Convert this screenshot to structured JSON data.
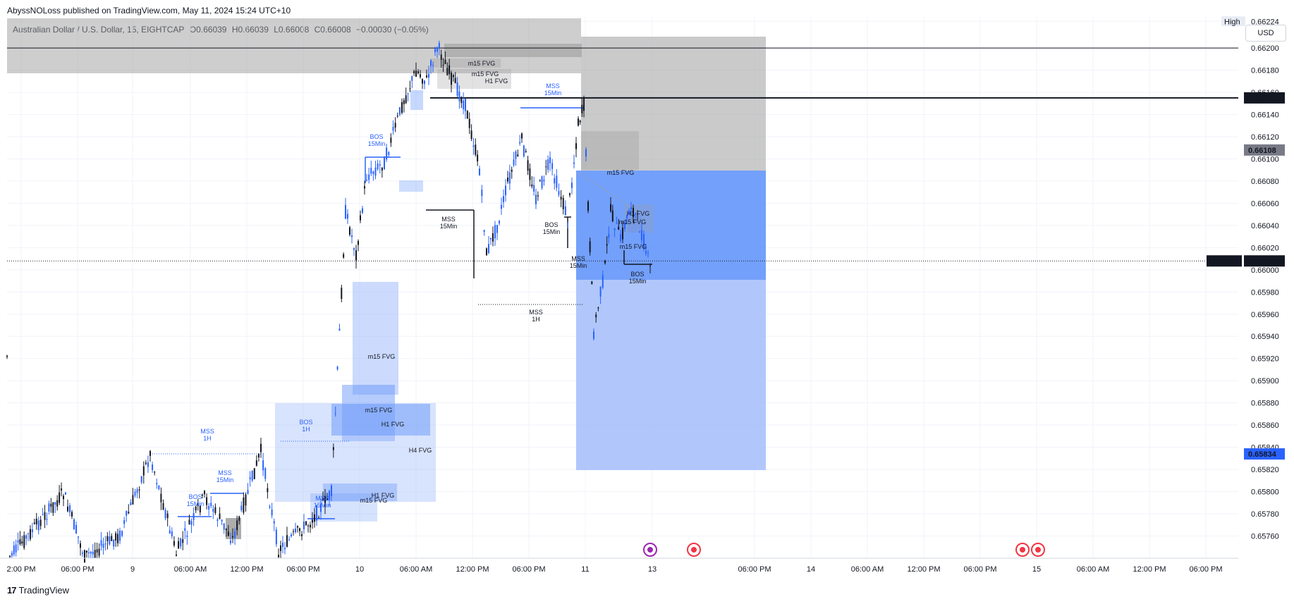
{
  "header": {
    "published": "AbyssNOLoss published on TradingView.com, May 11, 2024 15:24 UTC+10",
    "symbol": "Australian Dollar / U.S. Dollar, 15, EIGHTCAP",
    "open": "O0.66039",
    "high": "H0.66039",
    "low": "L0.66008",
    "close": "C0.66008",
    "change": "−0.00030 (−0.05%)",
    "currency": "USD"
  },
  "colors": {
    "zone_blue_dark": "#5b8ff9",
    "zone_blue_light": "#a9c1fb",
    "zone_grey": "#9e9e9e",
    "bos_blue": "#2962ff",
    "price_label_black": "#131722",
    "price_label_grey": "#787b86",
    "price_label_blue": "#2962ff"
  },
  "chart_data": {
    "type": "candlestick",
    "ylim": [
      0.6574,
      0.6623
    ],
    "y_ticks": [
      "0.66224",
      "0.66200",
      "0.66180",
      "0.66160",
      "0.66140",
      "0.66120",
      "0.66100",
      "0.66080",
      "0.66060",
      "0.66040",
      "0.66020",
      "0.66000",
      "0.65980",
      "0.65960",
      "0.65940",
      "0.65920",
      "0.65900",
      "0.65880",
      "0.65860",
      "0.65840",
      "0.65820",
      "0.65800",
      "0.65780",
      "0.65760"
    ],
    "x_ticks": [
      "2:00 PM",
      "06:00 PM",
      "9",
      "06:00 AM",
      "12:00 PM",
      "06:00 PM",
      "10",
      "06:00 AM",
      "12:00 PM",
      "06:00 PM",
      "11",
      "13",
      "06:00 PM",
      "14",
      "06:00 AM",
      "12:00 PM",
      "06:00 PM",
      "15",
      "06:00 AM",
      "12:00 PM",
      "06:00 PM"
    ],
    "price_labels": [
      {
        "text": "High",
        "value": 0.66224,
        "style": "high"
      },
      {
        "text": "0.66155",
        "value": 0.66155,
        "style": "black"
      },
      {
        "text": "0.66108",
        "value": 0.66108,
        "style": "grey"
      },
      {
        "text": "AUDUSD",
        "value": 0.66008,
        "style": "symbol"
      },
      {
        "text": "0.66008",
        "value": 0.66008,
        "style": "black"
      },
      {
        "text": "0.65834",
        "value": 0.65834,
        "style": "blue"
      }
    ],
    "horizontal_lines": [
      {
        "value": 0.662,
        "style": "solid"
      },
      {
        "value": 0.66155,
        "style": "solid-bold"
      },
      {
        "value": 0.66008,
        "style": "dotted"
      }
    ],
    "annotations": [
      {
        "text": "m15 FVG",
        "color": "#131722"
      },
      {
        "text": "m15 FVG",
        "color": "#131722"
      },
      {
        "text": "H1 FVG",
        "color": "#131722"
      },
      {
        "text": "MSS",
        "sub": "15Min",
        "color": "#2962ff"
      },
      {
        "text": "BOS",
        "sub": "15Min",
        "color": "#2962ff"
      },
      {
        "text": "m15 FVG",
        "color": "#131722"
      },
      {
        "text": "MSS",
        "sub": "15Min",
        "color": "#131722"
      },
      {
        "text": "BOS",
        "sub": "15Min",
        "color": "#131722"
      },
      {
        "text": "H1 FVG",
        "color": "#131722"
      },
      {
        "text": "m15 FVG",
        "color": "#131722"
      },
      {
        "text": "m15 FVG",
        "color": "#131722"
      },
      {
        "text": "MSS",
        "sub": "15Min",
        "color": "#131722"
      },
      {
        "text": "BOS",
        "sub": "15Min",
        "color": "#131722"
      },
      {
        "text": "MSS",
        "sub": "1H",
        "color": "#131722"
      },
      {
        "text": "m15 FVG",
        "color": "#131722"
      },
      {
        "text": "m15 FVG",
        "color": "#131722"
      },
      {
        "text": "H1 FVG",
        "color": "#131722"
      },
      {
        "text": "H4 FVG",
        "color": "#131722"
      },
      {
        "text": "BOS",
        "sub": "1H",
        "color": "#2962ff"
      },
      {
        "text": "MSS",
        "sub": "1H",
        "color": "#2962ff"
      },
      {
        "text": "MSS",
        "sub": "15Min",
        "color": "#2962ff"
      },
      {
        "text": "BOS",
        "sub": "15Min",
        "color": "#2962ff"
      },
      {
        "text": "MSS",
        "sub": "15Min",
        "color": "#2962ff"
      },
      {
        "text": "H1 FVG",
        "color": "#131722"
      },
      {
        "text": "m15 FVG",
        "color": "#131722"
      }
    ]
  },
  "footer": {
    "brand": "TradingView"
  }
}
